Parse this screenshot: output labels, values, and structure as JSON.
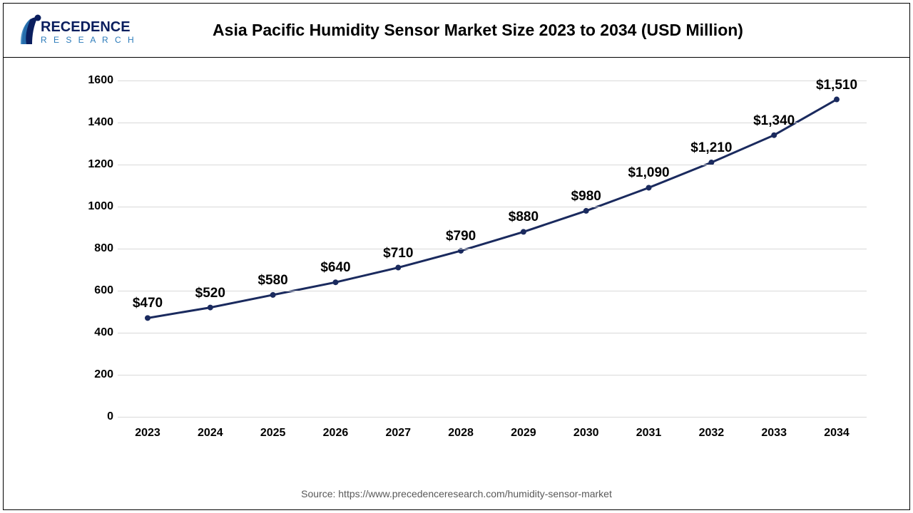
{
  "title": "Asia Pacific Humidity Sensor Market Size 2023 to 2034 (USD Million)",
  "logo": {
    "brand_top": "RECEDENCE",
    "brand_bottom": "R E S E A R C H",
    "accent_color": "#0a1e5e",
    "sub_color": "#2b7bba"
  },
  "chart": {
    "type": "line",
    "years": [
      "2023",
      "2024",
      "2025",
      "2026",
      "2027",
      "2028",
      "2029",
      "2030",
      "2031",
      "2032",
      "2033",
      "2034"
    ],
    "values": [
      470,
      520,
      580,
      640,
      710,
      790,
      880,
      980,
      1090,
      1210,
      1340,
      1510
    ],
    "value_labels": [
      "$470",
      "$520",
      "$580",
      "$640",
      "$710",
      "$790",
      "$880",
      "$980",
      "$1,090",
      "$1,210",
      "$1,340",
      "$1,510"
    ],
    "ylim": [
      0,
      1600
    ],
    "ytick_step": 200,
    "yticks": [
      0,
      200,
      400,
      600,
      800,
      1000,
      1200,
      1400,
      1600
    ],
    "line_color": "#1a2a5e",
    "marker_color": "#1a2a5e",
    "marker_radius": 4,
    "line_width": 3,
    "grid_color": "#d9d9d9",
    "axis_label_color": "#000000",
    "axis_font_size": 16,
    "data_label_font_size": 19,
    "background_color": "#ffffff"
  },
  "source": "Source: https://www.precedenceresearch.com/humidity-sensor-market"
}
